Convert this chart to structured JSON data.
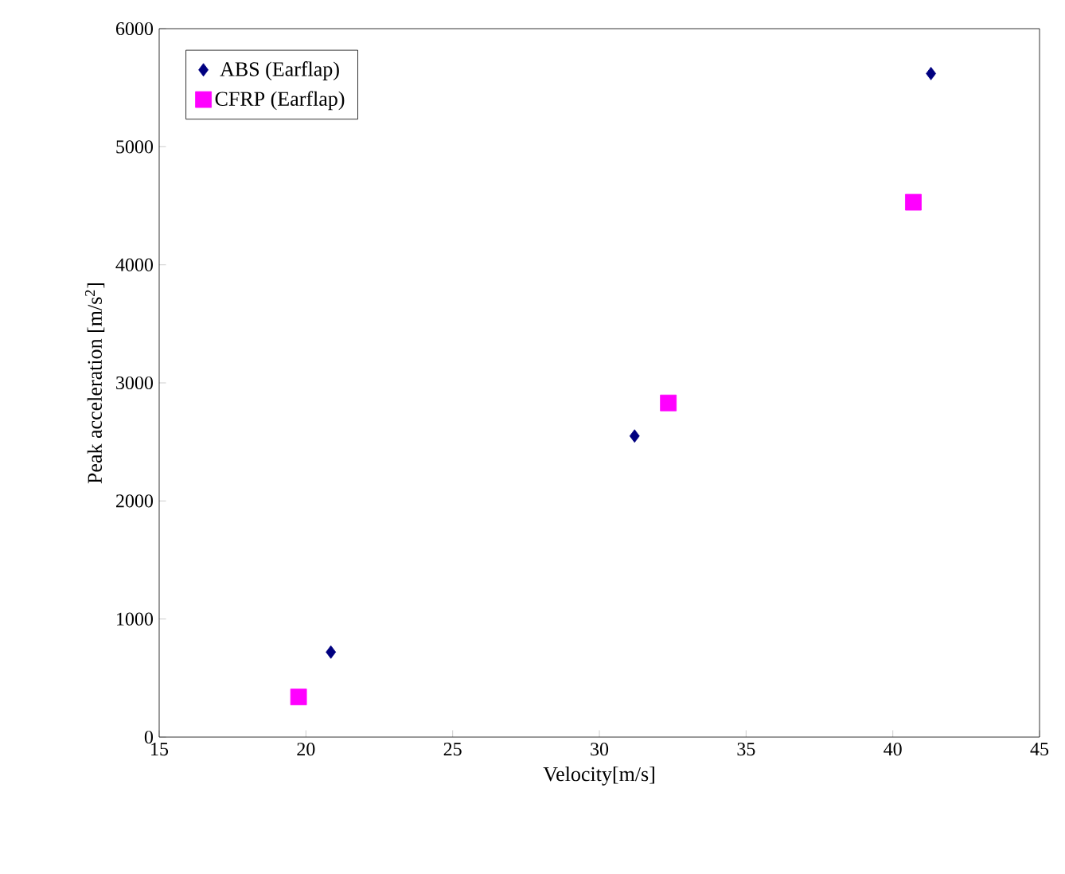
{
  "chart_data": {
    "type": "scatter",
    "xlabel": "Velocity[m/s]",
    "ylabel": "Peak acceleration [m/s$^{2}$]",
    "xlim": [
      15,
      45
    ],
    "ylim": [
      0,
      6000
    ],
    "xticks": [
      15,
      20,
      25,
      30,
      35,
      40,
      45
    ],
    "yticks": [
      0,
      1000,
      2000,
      3000,
      4000,
      5000,
      6000
    ],
    "grid": false,
    "legend": "top left",
    "series": [
      {
        "name": "ABS (Earflap)",
        "color": "#000080",
        "marker": "diamond",
        "x": [
          20.85,
          31.2,
          41.3
        ],
        "values": [
          720,
          2550,
          5620
        ]
      },
      {
        "name": "CFRP (Earflap)",
        "color": "#ff00ff",
        "marker": "square",
        "x": [
          19.75,
          32.35,
          40.7
        ],
        "values": [
          340,
          2830,
          4530
        ]
      }
    ]
  }
}
